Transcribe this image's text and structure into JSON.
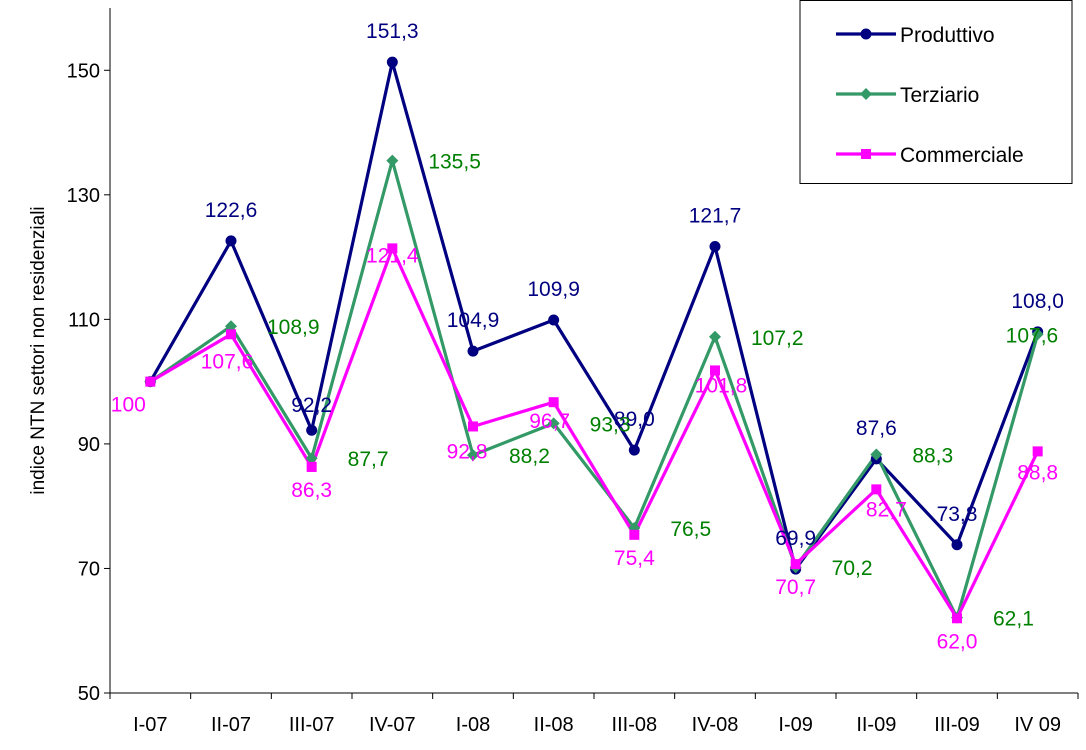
{
  "chart_data": {
    "type": "line",
    "title": "",
    "xlabel": "",
    "ylabel": "indice NTN settori non residenziali",
    "categories": [
      "I-07",
      "II-07",
      "III-07",
      "IV-07",
      "I-08",
      "II-08",
      "III-08",
      "IV-08",
      "I-09",
      "II-09",
      "III-09",
      "IV 09"
    ],
    "ylim": [
      50,
      160
    ],
    "yticks": [
      50,
      70,
      90,
      110,
      130,
      150
    ],
    "grid": false,
    "legend_position": "top-right",
    "series": [
      {
        "name": "Produttivo",
        "color": "#000080",
        "marker": "circle",
        "values": [
          100,
          122.6,
          92.2,
          151.3,
          104.9,
          109.9,
          89.0,
          121.7,
          69.9,
          87.6,
          73.8,
          108.0
        ],
        "labels": [
          "",
          "122,6",
          "92,2",
          "151,3",
          "104,9",
          "109,9",
          "89,0",
          "121,7",
          "69,9",
          "87,6",
          "73,8",
          "108,0"
        ]
      },
      {
        "name": "Terziario",
        "color": "#339966",
        "label_color": "#008000",
        "marker": "diamond",
        "values": [
          100,
          108.9,
          87.7,
          135.5,
          88.2,
          93.3,
          76.5,
          107.2,
          70.2,
          88.3,
          62.1,
          107.6
        ],
        "labels": [
          "",
          "108,9",
          "87,7",
          "135,5",
          "88,2",
          "93,3",
          "76,5",
          "107,2",
          "70,2",
          "88,3",
          "62,1",
          "107,6"
        ]
      },
      {
        "name": "Commerciale",
        "color": "#FF00FF",
        "marker": "square",
        "values": [
          100,
          107.6,
          86.3,
          121.4,
          92.8,
          96.7,
          75.4,
          101.8,
          70.7,
          82.7,
          62.0,
          88.8
        ],
        "labels": [
          "100",
          "107,6",
          "86,3",
          "121,4",
          "92,8",
          "96,7",
          "75,4",
          "101,8",
          "70,7",
          "82,7",
          "62,0",
          "88,8"
        ]
      }
    ]
  }
}
